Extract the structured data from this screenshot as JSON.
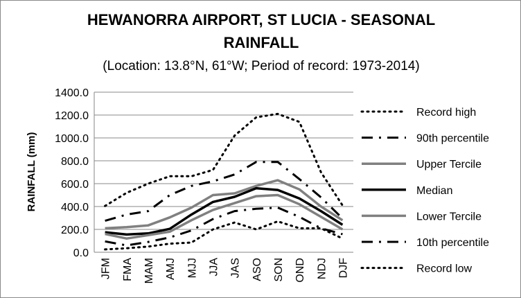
{
  "chart_data": {
    "type": "line",
    "title_line1": "HEWANORRA AIRPORT, ST LUCIA - SEASONAL",
    "title_line2": "RAINFALL",
    "subtitle": "(Location: 13.8°N, 61°W; Period of record: 1973-2014)",
    "ylabel": "RAINFALL (mm)",
    "xlabel": "",
    "ylim": [
      0,
      1400
    ],
    "yticks": [
      "0.0",
      "200.0",
      "400.0",
      "600.0",
      "800.0",
      "1000.0",
      "1200.0",
      "1400.0"
    ],
    "grid": true,
    "legend_position": "right",
    "categories": [
      "JFM",
      "FMA",
      "MAM",
      "AMJ",
      "MJJ",
      "JJA",
      "JAS",
      "ASO",
      "SON",
      "OND",
      "NDJ",
      "DJF"
    ],
    "series": [
      {
        "name": "Record high",
        "style": "dotted",
        "color": "#000000",
        "values": [
          405,
          520,
          600,
          665,
          665,
          720,
          1020,
          1180,
          1210,
          1140,
          700,
          410
        ]
      },
      {
        "name": "90th percentile",
        "style": "dashdot",
        "color": "#000000",
        "values": [
          275,
          330,
          360,
          500,
          580,
          620,
          680,
          790,
          790,
          640,
          480,
          295
        ]
      },
      {
        "name": "Upper Tercile",
        "style": "solid",
        "color": "#808080",
        "values": [
          210,
          220,
          235,
          305,
          390,
          500,
          515,
          580,
          630,
          550,
          400,
          280
        ]
      },
      {
        "name": "Median",
        "style": "solid",
        "color": "#000000",
        "values": [
          175,
          155,
          165,
          205,
          330,
          440,
          485,
          560,
          545,
          470,
          360,
          240
        ]
      },
      {
        "name": "Lower Tercile",
        "style": "solid",
        "color": "#808080",
        "values": [
          160,
          120,
          150,
          180,
          280,
          370,
          430,
          490,
          500,
          420,
          310,
          200
        ]
      },
      {
        "name": "10th percentile",
        "style": "dashdot",
        "color": "#000000",
        "values": [
          95,
          60,
          90,
          130,
          190,
          290,
          360,
          380,
          390,
          310,
          210,
          158
        ]
      },
      {
        "name": "Record low",
        "style": "dotted",
        "color": "#000000",
        "values": [
          25,
          35,
          50,
          75,
          85,
          200,
          260,
          200,
          270,
          210,
          210,
          120
        ]
      }
    ]
  }
}
